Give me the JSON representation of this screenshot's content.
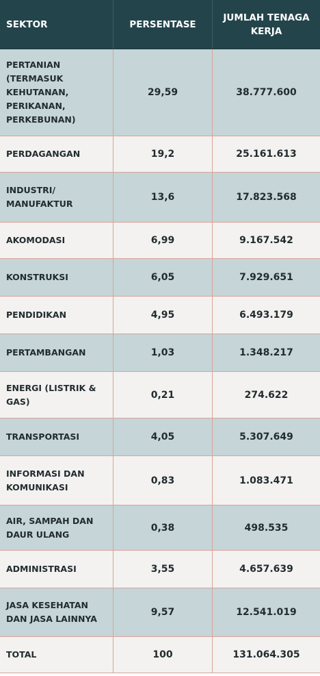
{
  "header": {
    "sector": "SEKTOR",
    "percentage": "PERSENTASE",
    "workers": "JUMLAH TENAGA KERJA"
  },
  "rows": [
    {
      "sector": "PERTANIAN (TERMASUK KEHUTANAN, PERIKANAN, PERKEBUNAN)",
      "percentage": "29,59",
      "workers": "38.777.600"
    },
    {
      "sector": "PERDAGANGAN",
      "percentage": "19,2",
      "workers": "25.161.613"
    },
    {
      "sector": "INDUSTRI/ MANUFAKTUR",
      "percentage": "13,6",
      "workers": "17.823.568"
    },
    {
      "sector": "AKOMODASI",
      "percentage": "6,99",
      "workers": "9.167.542"
    },
    {
      "sector": "KONSTRUKSI",
      "percentage": "6,05",
      "workers": "7.929.651"
    },
    {
      "sector": "PENDIDIKAN",
      "percentage": "4,95",
      "workers": "6.493.179"
    },
    {
      "sector": "PERTAMBANGAN",
      "percentage": "1,03",
      "workers": "1.348.217"
    },
    {
      "sector": "ENERGI (LISTRIK & GAS)",
      "percentage": "0,21",
      "workers": "274.622"
    },
    {
      "sector": "TRANSPORTASI",
      "percentage": "4,05",
      "workers": "5.307.649"
    },
    {
      "sector": "INFORMASI DAN KOMUNIKASI",
      "percentage": "0,83",
      "workers": "1.083.471"
    },
    {
      "sector": "AIR, SAMPAH DAN DAUR ULANG",
      "percentage": "0,38",
      "workers": "498.535"
    },
    {
      "sector": "ADMINISTRASI",
      "percentage": "3,55",
      "workers": "4.657.639"
    },
    {
      "sector": "JASA KESEHATAN DAN JASA LAINNYA",
      "percentage": "9,57",
      "workers": "12.541.019"
    },
    {
      "sector": "TOTAL",
      "percentage": "100",
      "workers": "131.064.305"
    }
  ],
  "colors": {
    "header_bg": "#24444b",
    "header_text": "#ffffff",
    "row_blue": "#c5d5d8",
    "row_white": "#f3f2f0",
    "divider": "#d9a39a",
    "text": "#222c30"
  }
}
